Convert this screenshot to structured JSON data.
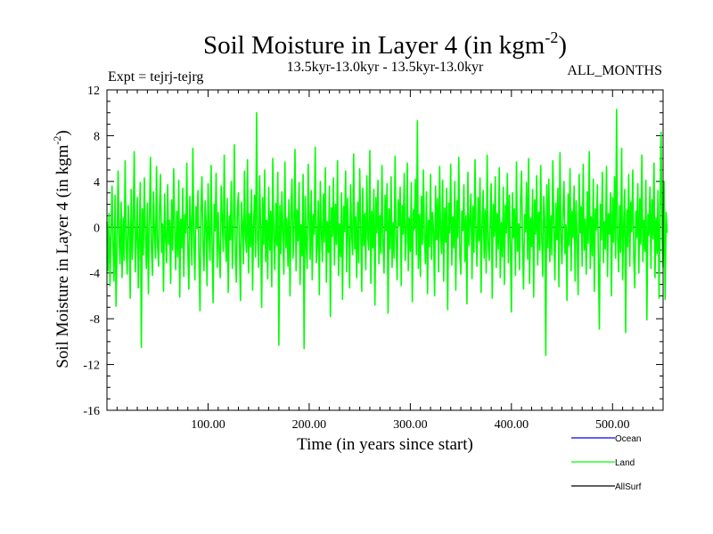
{
  "chart_data": {
    "type": "line",
    "title": "Soil Moisture in Layer 4 (in kgm",
    "title_sup": "-2",
    "title_close": ")",
    "subtitle_left": "Expt = tejrj-tejrg",
    "subtitle_center": "13.5kyr-13.0kyr - 13.5kyr-13.0kyr",
    "subtitle_right": "ALL_MONTHS",
    "xlabel": "Time (in years since start)",
    "ylabel": "Soil Moisture in Layer 4 (in kgm",
    "ylabel_sup": "-2",
    "ylabel_close": ")",
    "xlim": [
      0,
      550
    ],
    "ylim": [
      -16,
      12
    ],
    "x_ticks": [
      100,
      200,
      300,
      400,
      500
    ],
    "x_tick_labels": [
      "100.00",
      "200.00",
      "300.00",
      "400.00",
      "500.00"
    ],
    "y_ticks": [
      -16,
      -12,
      -8,
      -4,
      0,
      4,
      8,
      12
    ],
    "y_tick_labels": [
      "-16",
      "-12",
      "-8",
      "-4",
      "0",
      "4",
      "8",
      "12"
    ],
    "zero_line": true,
    "legend_position": "bottom-right",
    "series": [
      {
        "name": "Ocean",
        "color": "#0000ff",
        "values": []
      },
      {
        "name": "Land",
        "color": "#00ff00",
        "x_start": 0,
        "x_step": 1,
        "values": [
          0.5,
          -3.8,
          1.2,
          -5.1,
          -0.9,
          3.6,
          -1.4,
          -4.7,
          2.8,
          -6.9,
          -2.1,
          4.9,
          -0.6,
          -3.2,
          2.2,
          -4.4,
          0.8,
          -2.9,
          5.8,
          -1.7,
          -4.1,
          1.9,
          -0.3,
          -6.2,
          3.3,
          -2.8,
          0.4,
          6.6,
          -3.9,
          -1.1,
          2.6,
          -5.3,
          -0.8,
          3.9,
          -10.5,
          1.6,
          -2.4,
          4.3,
          -0.7,
          -3.6,
          2.1,
          -5.8,
          0.9,
          6.1,
          -1.9,
          -4.2,
          3.1,
          -0.4,
          -2.7,
          5.3,
          -1.3,
          -3.4,
          1.7,
          4.6,
          -2.2,
          0.3,
          -5.6,
          2.9,
          -0.9,
          -3.1,
          3.7,
          -1.5,
          0.6,
          -4.9,
          2.4,
          -2.0,
          5.1,
          -0.2,
          -3.7,
          1.4,
          -2.6,
          4.1,
          -6.1,
          0.7,
          -1.8,
          3.4,
          -4.3,
          1.1,
          -0.5,
          5.6,
          -2.3,
          -5.4,
          2.7,
          0.2,
          -3.3,
          6.9,
          -1.2,
          -4.6,
          1.8,
          -0.1,
          3.2,
          -2.5,
          -7.3,
          1.5,
          4.4,
          -1.6,
          -3.8,
          2.3,
          0.5,
          -5.1,
          3.8,
          -0.8,
          -2.9,
          5.4,
          -1.4,
          -6.6,
          2.0,
          -0.3,
          4.7,
          -3.5,
          1.3,
          -1.9,
          -4.4,
          3.6,
          0.9,
          -2.1,
          6.3,
          -0.6,
          -3.0,
          2.5,
          -5.7,
          1.0,
          -1.1,
          4.0,
          -3.6,
          -0.2,
          7.2,
          -2.4,
          -4.8,
          1.6,
          3.0,
          -1.3,
          -6.4,
          2.2,
          0.4,
          -3.2,
          4.9,
          -0.7,
          -2.2,
          5.9,
          -4.0,
          1.2,
          -1.7,
          3.3,
          -5.5,
          0.1,
          2.8,
          -2.6,
          10.0,
          -1.0,
          -3.5,
          4.5,
          -0.4,
          -7.0,
          2.6,
          -1.5,
          5.0,
          -3.0,
          0.6,
          -4.5,
          3.5,
          -2.0,
          1.4,
          -5.2,
          6.0,
          -0.9,
          -3.7,
          2.1,
          -1.6,
          4.8,
          -10.3,
          1.9,
          -2.3,
          3.1,
          -0.5,
          -4.1,
          5.7,
          -1.8,
          0.8,
          -3.4,
          2.4,
          -6.0,
          1.3,
          4.2,
          -2.7,
          -0.3,
          6.8,
          -3.8,
          1.5,
          -1.2,
          3.9,
          -5.0,
          0.2,
          -2.5,
          4.6,
          -10.6,
          2.7,
          -1.4,
          -3.6,
          5.5,
          0.7,
          -2.8,
          3.2,
          -4.6,
          1.1,
          -0.6,
          7.0,
          -3.1,
          -1.7,
          2.3,
          -5.9,
          4.0,
          -0.1,
          -3.0,
          2.9,
          -1.3,
          5.2,
          -4.8,
          0.5,
          -2.2,
          3.6,
          -7.8,
          1.7,
          -0.8,
          4.3,
          -3.3,
          2.0,
          -1.5,
          5.8,
          -4.2,
          0.3,
          -2.6,
          3.0,
          -6.3,
          1.8,
          -0.4,
          4.9,
          -3.9,
          2.5,
          -1.1,
          -5.3,
          3.7,
          -0.7,
          -2.4,
          6.4,
          -1.9,
          0.9,
          -4.4,
          2.2,
          -3.1,
          5.1,
          -0.2,
          -5.6,
          3.4,
          -1.6,
          1.2,
          -3.7,
          4.5,
          -0.9,
          -2.0,
          6.7,
          -4.9,
          1.4,
          -1.8,
          3.3,
          -6.8,
          2.6,
          -0.5,
          4.1,
          -3.2,
          1.0,
          -2.3,
          5.4,
          -1.2,
          -4.0,
          2.8,
          -0.3,
          3.8,
          -7.5,
          1.6,
          -1.9,
          4.4,
          -3.5,
          0.4,
          -2.7,
          6.2,
          -1.4,
          -4.6,
          2.4,
          0.1,
          3.5,
          -5.1,
          1.9,
          -0.6,
          4.7,
          -2.9,
          -1.0,
          5.6,
          -3.8,
          0.8,
          -2.1,
          3.9,
          -6.5,
          1.5,
          -0.2,
          4.2,
          -2.4,
          9.3,
          -3.6,
          1.1,
          -4.3,
          2.7,
          -1.5,
          5.0,
          -0.8,
          -3.2,
          3.1,
          -5.8,
          0.6,
          -1.7,
          4.6,
          -2.8,
          1.3,
          -0.4,
          -6.0,
          3.6,
          -1.1,
          2.5,
          -3.9,
          5.3,
          -0.7,
          -2.3,
          4.1,
          -4.7,
          1.7,
          -1.3,
          3.4,
          -7.2,
          2.1,
          -0.5,
          5.5,
          -3.3,
          0.9,
          -1.8,
          4.0,
          -5.5,
          2.3,
          -0.9,
          6.1,
          -2.5,
          -4.1,
          1.4,
          -0.3,
          3.7,
          -3.0,
          1.0,
          -6.7,
          4.8,
          -1.6,
          0.5,
          2.9,
          -4.5,
          1.8,
          -2.2,
          5.9,
          -0.6,
          -3.4,
          2.6,
          -1.2,
          4.3,
          -5.7,
          0.2,
          3.2,
          -2.7,
          1.5,
          -4.0,
          6.3,
          -1.4,
          -2.9,
          0.7,
          3.8,
          -6.2,
          2.0,
          -0.8,
          4.4,
          -3.5,
          1.2,
          -1.9,
          5.2,
          -4.4,
          0.4,
          -2.6,
          3.5,
          -5.0,
          1.9,
          -0.5,
          4.7,
          -3.1,
          2.8,
          -1.5,
          -7.4,
          3.0,
          -0.9,
          1.6,
          -4.2,
          5.7,
          -2.1,
          0.3,
          -3.7,
          2.2,
          4.9,
          -1.3,
          -5.4,
          1.1,
          -0.4,
          3.9,
          -2.8,
          6.0,
          -4.9,
          0.8,
          -1.7,
          3.3,
          -6.1,
          2.4,
          -0.6,
          4.5,
          -3.3,
          1.3,
          -2.0,
          5.4,
          -1.0,
          -4.3,
          2.7,
          0.6,
          -11.2,
          3.7,
          -1.8,
          4.2,
          -3.0,
          1.0,
          -2.4,
          5.8,
          -0.3,
          -4.6,
          2.1,
          -1.1,
          3.4,
          -5.2,
          6.5,
          -0.7,
          -3.2,
          1.7,
          4.0,
          -2.3,
          0.2,
          -6.4,
          2.9,
          -1.6,
          5.1,
          -3.8,
          1.4,
          -0.9,
          3.6,
          -4.7,
          2.3,
          -1.2,
          -5.9,
          4.6,
          -0.5,
          1.8,
          -3.4,
          5.5,
          -2.0,
          0.7,
          -4.1,
          3.1,
          -1.4,
          6.6,
          -3.6,
          0.9,
          -2.5,
          4.2,
          -5.6,
          1.6,
          -0.2,
          3.7,
          -2.9,
          -8.9,
          2.0,
          -1.1,
          4.8,
          -3.1,
          0.5,
          -1.9,
          5.3,
          -4.3,
          1.2,
          -0.6,
          3.0,
          -6.0,
          2.6,
          -1.3,
          4.4,
          -2.7,
          10.3,
          -0.8,
          -3.9,
          1.9,
          -2.2,
          6.9,
          -4.6,
          0.3,
          3.3,
          -9.2,
          1.5,
          -1.7,
          4.6,
          -3.4,
          2.2,
          -0.4,
          5.0,
          -2.6,
          -5.3,
          1.4,
          -0.9,
          3.8,
          -4.0,
          2.5,
          -1.5,
          6.3,
          -3.0,
          0.6,
          -2.1,
          4.1,
          -8.1,
          1.1,
          -0.7,
          3.5,
          -3.6,
          2.4,
          -1.0,
          5.6,
          -4.4,
          0.8,
          -2.3,
          3.2,
          -6.2,
          1.7,
          8.3,
          -1.2,
          -3.5,
          4.0,
          -6.3,
          1.3,
          -0.5
        ]
      },
      {
        "name": "AllSurf",
        "color": "#000000",
        "values": []
      }
    ]
  }
}
